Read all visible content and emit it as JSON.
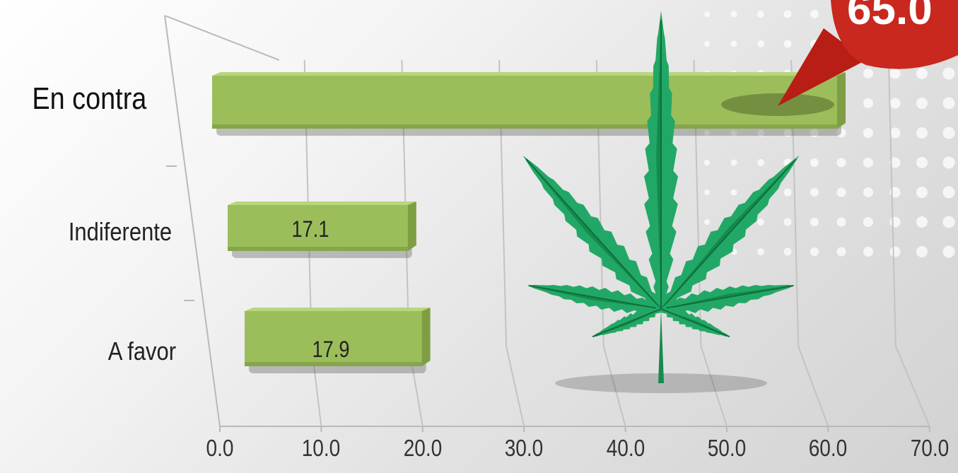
{
  "chart_data": {
    "type": "bar",
    "orientation": "horizontal",
    "categories": [
      "En contra",
      "Indiferente",
      "A favor"
    ],
    "values": [
      65.0,
      17.1,
      17.9
    ],
    "value_labels": [
      "65.0",
      "17.1",
      "17.9"
    ],
    "x_ticks": [
      "0.0",
      "10.0",
      "20.0",
      "30.0",
      "40.0",
      "50.0",
      "60.0",
      "70.0"
    ],
    "xlim": [
      0,
      70
    ],
    "grid": true,
    "bar_color": "#9cbe5a",
    "highlight_color": "#c8281e",
    "leaf_color": "#1fa160"
  }
}
